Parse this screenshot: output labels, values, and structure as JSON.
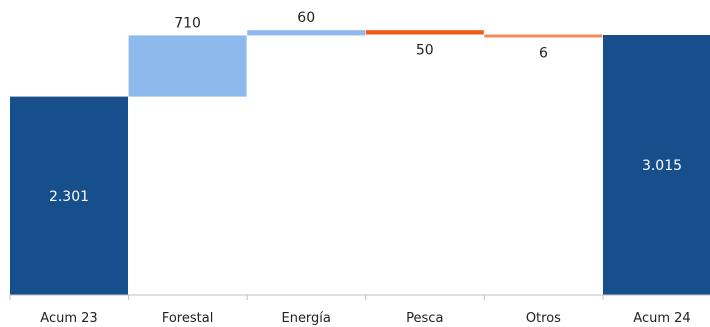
{
  "chart_data": {
    "type": "waterfall",
    "categories": [
      "Acum 23",
      "Forestal",
      "Energía",
      "Pesca",
      "Otros",
      "Acum 24"
    ],
    "values": [
      2301,
      710,
      60,
      -50,
      -6,
      3015
    ],
    "kinds": [
      "total",
      "delta",
      "delta",
      "delta",
      "delta",
      "total"
    ],
    "data_labels": [
      "2.301",
      "710",
      "60",
      "50",
      "6",
      "3.015"
    ],
    "colors": [
      "#174e8c",
      "#8db9ec",
      "#8db9ec",
      "#f05a14",
      "#f08a5d",
      "#174e8c"
    ],
    "ylim": [
      0,
      3050
    ],
    "grid": false,
    "legend": "none"
  }
}
